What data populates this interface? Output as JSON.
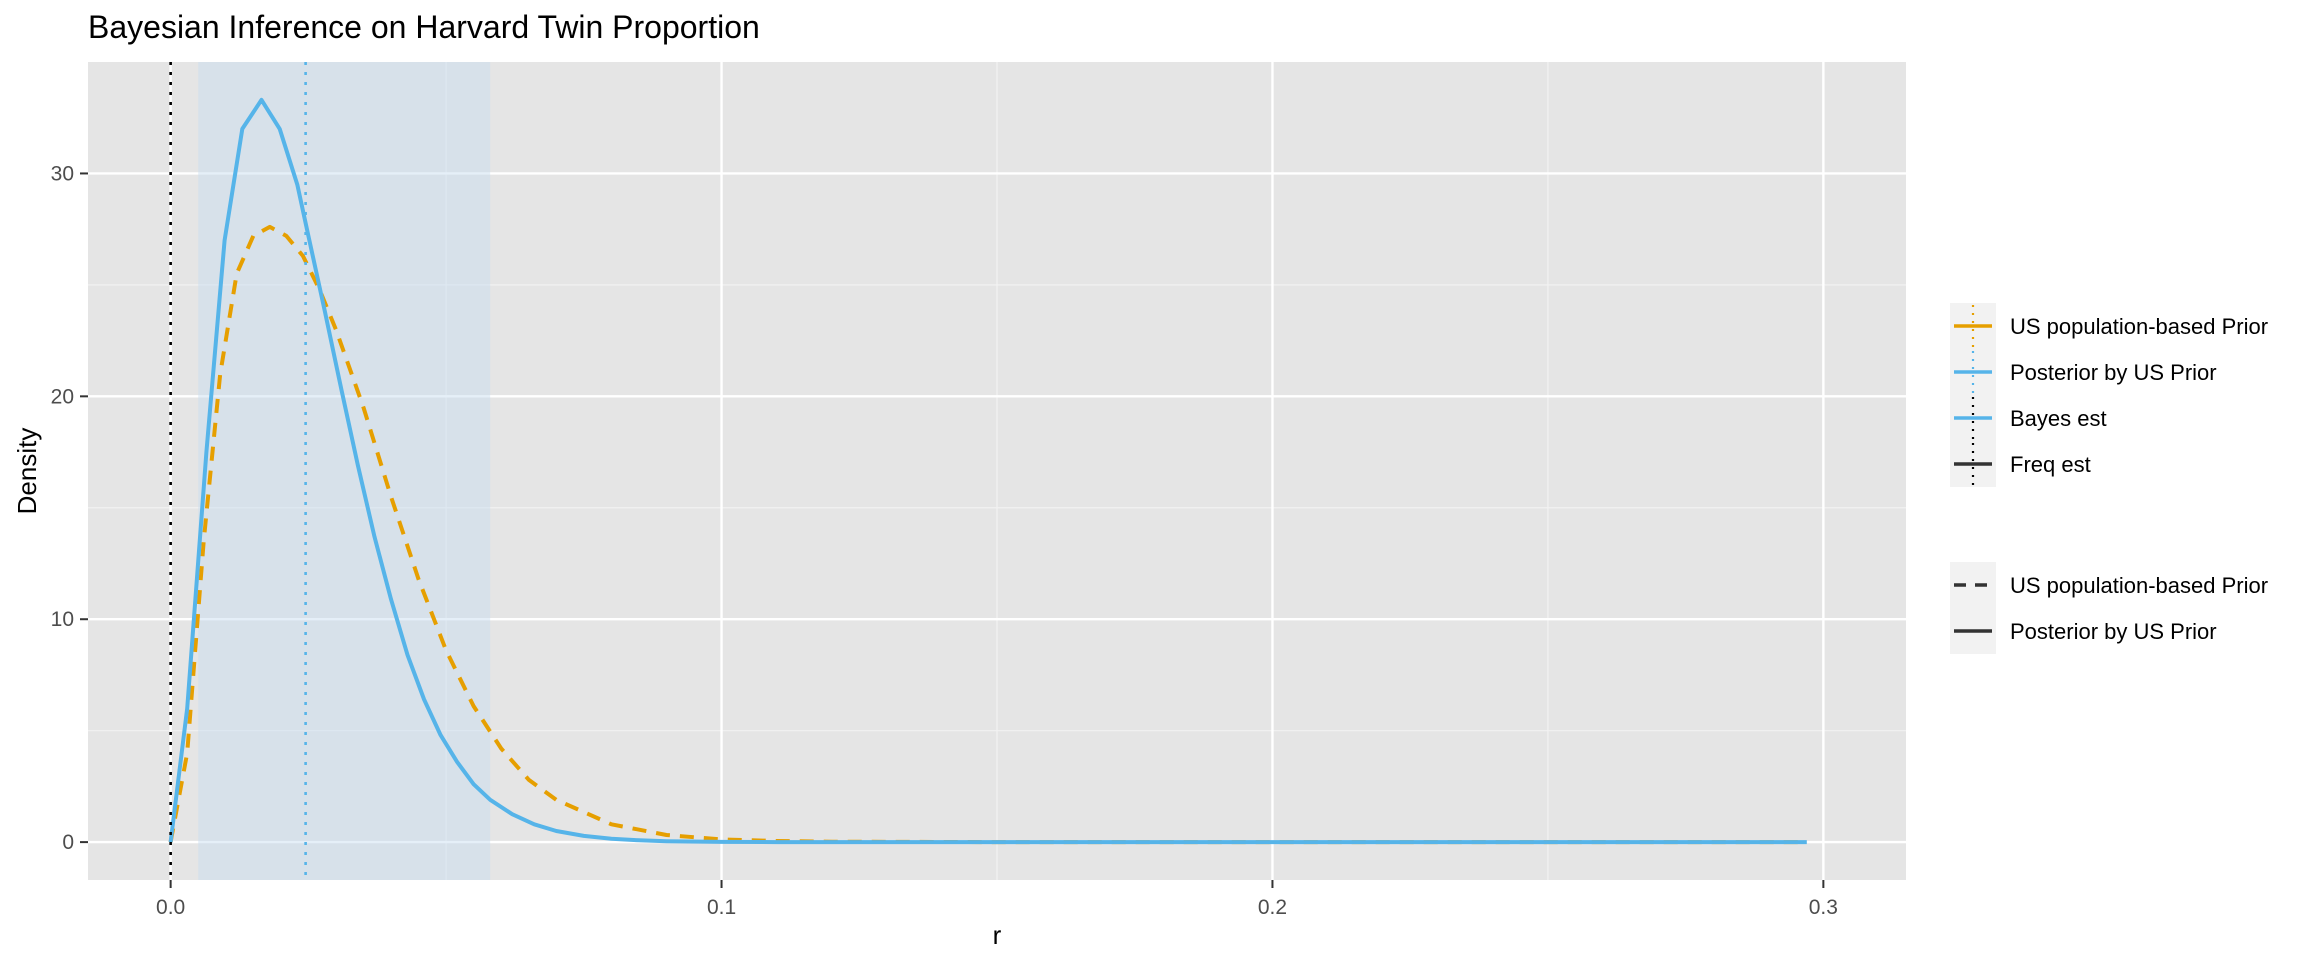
{
  "chart_data": {
    "type": "line",
    "title": "Bayesian Inference on Harvard Twin Proportion",
    "xlabel": "r",
    "ylabel": "Density",
    "xlim": [
      -0.015,
      0.315
    ],
    "ylim": [
      -1.7,
      35.0
    ],
    "x_ticks": [
      0.0,
      0.1,
      0.2,
      0.3
    ],
    "x_tick_labels": [
      "0.0",
      "0.1",
      "0.2",
      "0.3"
    ],
    "y_ticks": [
      0,
      10,
      20,
      30
    ],
    "y_tick_labels": [
      "0",
      "10",
      "20",
      "30"
    ],
    "grid": true,
    "legend_position": "right",
    "credible_interval": [
      0.005,
      0.058
    ],
    "reference_lines": [
      {
        "name": "Freq est",
        "x": 0.0,
        "color": "#000000",
        "style": "dotted"
      },
      {
        "name": "Bayes est",
        "x": 0.0245,
        "color": "#56B4E9",
        "style": "dotted"
      }
    ],
    "series": [
      {
        "name": "US population-based Prior",
        "color": "#E69F00",
        "dash": "dashed",
        "x": [
          0.0,
          0.003,
          0.006,
          0.009,
          0.012,
          0.015,
          0.018,
          0.021,
          0.024,
          0.027,
          0.03,
          0.035,
          0.04,
          0.045,
          0.05,
          0.055,
          0.06,
          0.065,
          0.07,
          0.08,
          0.09,
          0.1,
          0.11,
          0.12,
          0.15,
          0.2,
          0.25,
          0.297
        ],
        "values": [
          0.0,
          4.0,
          13.5,
          21.0,
          25.5,
          27.2,
          27.6,
          27.2,
          26.3,
          24.8,
          23.0,
          19.5,
          15.5,
          11.8,
          8.6,
          6.1,
          4.2,
          2.8,
          1.9,
          0.8,
          0.32,
          0.12,
          0.05,
          0.02,
          0.0,
          0.0,
          0.0,
          0.0
        ]
      },
      {
        "name": "Posterior by US Prior",
        "color": "#56B4E9",
        "dash": "solid",
        "x": [
          0.0,
          0.003,
          0.0065,
          0.0098,
          0.013,
          0.0165,
          0.0198,
          0.023,
          0.025,
          0.028,
          0.031,
          0.034,
          0.037,
          0.04,
          0.043,
          0.046,
          0.049,
          0.052,
          0.055,
          0.058,
          0.062,
          0.066,
          0.07,
          0.075,
          0.08,
          0.085,
          0.09,
          0.1,
          0.11,
          0.13,
          0.15,
          0.2,
          0.25,
          0.297
        ],
        "values": [
          0.0,
          6.0,
          17.5,
          27.0,
          32.0,
          33.3,
          32.0,
          29.5,
          27.2,
          23.8,
          20.3,
          16.9,
          13.7,
          10.9,
          8.4,
          6.4,
          4.8,
          3.6,
          2.6,
          1.9,
          1.25,
          0.8,
          0.5,
          0.28,
          0.15,
          0.08,
          0.04,
          0.01,
          0.0,
          0.0,
          0.0,
          0.0,
          0.0,
          0.0
        ]
      }
    ],
    "legends": [
      {
        "entries": [
          {
            "label": "US population-based Prior",
            "color": "#E69F00",
            "ref_color": "#E69F00"
          },
          {
            "label": "Posterior by US Prior",
            "color": "#56B4E9",
            "ref_color": "#56B4E9"
          },
          {
            "label": "Bayes est",
            "color": "#56B4E9",
            "ref_color": "#000000"
          },
          {
            "label": "Freq est",
            "color": "#333333",
            "ref_color": "#000000"
          }
        ]
      },
      {
        "entries": [
          {
            "label": "US population-based Prior",
            "dash": "dashed"
          },
          {
            "label": "Posterior by US Prior",
            "dash": "solid"
          }
        ]
      }
    ]
  }
}
